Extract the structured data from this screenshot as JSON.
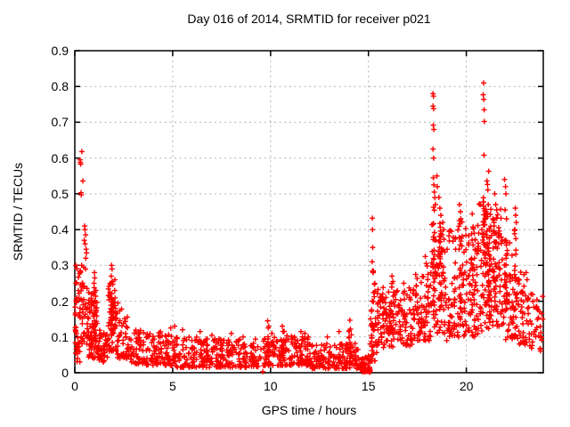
{
  "page": {
    "background": "#ffffff"
  },
  "chart_data": {
    "type": "scatter",
    "title": "Day 016 of 2014, SRMTID for receiver p021",
    "xlabel": "GPS time / hours",
    "ylabel": "SRMTID / TECUs",
    "xlim": [
      0,
      23.93
    ],
    "ylim": [
      0,
      0.9
    ],
    "xticks": [
      0,
      5,
      10,
      15,
      20
    ],
    "xtick_labels": [
      "0",
      "5",
      "10",
      "15",
      "20"
    ],
    "yticks": [
      0,
      0.1,
      0.2,
      0.3,
      0.4,
      0.5,
      0.6,
      0.7,
      0.8,
      0.9
    ],
    "ytick_labels": [
      "0",
      "0.1",
      "0.2",
      "0.3",
      "0.4",
      "0.5",
      "0.6",
      "0.7",
      "0.8",
      "0.9"
    ],
    "grid": true,
    "legend": false,
    "grid_color": "#b0b0b0",
    "border_color": "#000000",
    "marker": {
      "shape": "plus",
      "color": "#ff0000",
      "size": 7
    },
    "series": [
      {
        "style": "points",
        "outlier_points": [
          [
            0.36,
            0.618
          ],
          [
            0.27,
            0.595
          ],
          [
            0.28,
            0.588
          ],
          [
            0.3,
            0.583
          ],
          [
            0.41,
            0.536
          ],
          [
            0.32,
            0.503
          ],
          [
            0.33,
            0.497
          ],
          [
            0.5,
            0.41
          ],
          [
            0.52,
            0.4
          ],
          [
            0.55,
            0.385
          ],
          [
            0.48,
            0.37
          ],
          [
            0.53,
            0.36
          ],
          [
            0.58,
            0.345
          ],
          [
            0.6,
            0.335
          ],
          [
            0.56,
            0.32
          ],
          [
            0.35,
            0.3
          ],
          [
            0.45,
            0.295
          ],
          [
            0.55,
            0.29
          ],
          [
            0.05,
            0.25
          ],
          [
            0.1,
            0.21
          ],
          [
            0.08,
            0.2
          ],
          [
            0.4,
            0.25
          ],
          [
            0.45,
            0.24
          ],
          [
            1.0,
            0.28
          ],
          [
            1.02,
            0.265
          ],
          [
            0.98,
            0.25
          ],
          [
            1.88,
            0.3
          ],
          [
            1.9,
            0.29
          ],
          [
            1.86,
            0.27
          ],
          [
            1.92,
            0.255
          ],
          [
            2.2,
            0.195
          ],
          [
            4.9,
            0.125
          ],
          [
            5.1,
            0.13
          ],
          [
            5.5,
            0.12
          ],
          [
            6.4,
            0.115
          ],
          [
            7.0,
            0.105
          ],
          [
            8.0,
            0.11
          ],
          [
            8.6,
            0.1
          ],
          [
            9.85,
            0.145
          ],
          [
            9.88,
            0.125
          ],
          [
            9.6,
            0.003
          ],
          [
            10.07,
            0.11
          ],
          [
            10.6,
            0.13
          ],
          [
            10.65,
            0.115
          ],
          [
            11.55,
            0.115
          ],
          [
            11.75,
            0.11
          ],
          [
            12.9,
            0.1
          ],
          [
            12.94,
            0.012
          ],
          [
            13.5,
            0.115
          ],
          [
            14.05,
            0.147
          ],
          [
            14.08,
            0.122
          ],
          [
            15.02,
            0.004
          ],
          [
            15.04,
            0.009
          ],
          [
            15.05,
            0.002
          ],
          [
            15.06,
            0.011
          ],
          [
            15.07,
            0.005
          ],
          [
            15.08,
            0.008
          ],
          [
            15.09,
            0.002
          ],
          [
            15.03,
            0.012
          ],
          [
            15.2,
            0.432
          ],
          [
            15.21,
            0.4
          ],
          [
            15.22,
            0.35
          ],
          [
            15.19,
            0.31
          ],
          [
            15.24,
            0.28
          ],
          [
            16.2,
            0.27
          ],
          [
            16.25,
            0.255
          ],
          [
            16.8,
            0.25
          ],
          [
            17.9,
            0.325
          ],
          [
            17.95,
            0.305
          ],
          [
            18.0,
            0.298
          ],
          [
            18.3,
            0.78
          ],
          [
            18.32,
            0.773
          ],
          [
            18.3,
            0.745
          ],
          [
            18.33,
            0.738
          ],
          [
            18.31,
            0.692
          ],
          [
            18.34,
            0.68
          ],
          [
            18.3,
            0.625
          ],
          [
            18.33,
            0.6
          ],
          [
            18.31,
            0.545
          ],
          [
            18.34,
            0.525
          ],
          [
            18.36,
            0.505
          ],
          [
            18.42,
            0.47
          ],
          [
            18.5,
            0.55
          ],
          [
            18.52,
            0.52
          ],
          [
            18.6,
            0.49
          ],
          [
            18.65,
            0.46
          ],
          [
            18.7,
            0.44
          ],
          [
            18.8,
            0.42
          ],
          [
            18.85,
            0.4
          ],
          [
            19.65,
            0.47
          ],
          [
            19.7,
            0.45
          ],
          [
            19.72,
            0.43
          ],
          [
            20.3,
            0.444
          ],
          [
            20.36,
            0.402
          ],
          [
            20.88,
            0.81
          ],
          [
            20.86,
            0.777
          ],
          [
            20.89,
            0.764
          ],
          [
            20.91,
            0.735
          ],
          [
            20.92,
            0.702
          ],
          [
            20.9,
            0.608
          ],
          [
            20.87,
            0.489
          ],
          [
            20.88,
            0.477
          ],
          [
            21.14,
            0.563
          ],
          [
            21.05,
            0.536
          ],
          [
            21.08,
            0.526
          ],
          [
            21.1,
            0.511
          ],
          [
            21.12,
            0.47
          ],
          [
            21.0,
            0.45
          ],
          [
            21.45,
            0.5
          ],
          [
            21.5,
            0.47
          ],
          [
            21.55,
            0.455
          ],
          [
            21.95,
            0.54
          ],
          [
            22.0,
            0.52
          ],
          [
            22.02,
            0.5
          ],
          [
            21.98,
            0.455
          ],
          [
            22.05,
            0.43
          ],
          [
            22.5,
            0.46
          ],
          [
            22.52,
            0.44
          ],
          [
            22.55,
            0.42
          ],
          [
            22.48,
            0.4
          ],
          [
            23.05,
            0.28
          ],
          [
            23.1,
            0.26
          ],
          [
            23.3,
            0.22
          ],
          [
            23.4,
            0.2
          ],
          [
            23.6,
            0.185
          ],
          [
            23.75,
            0.17
          ],
          [
            23.85,
            0.165
          ],
          [
            23.9,
            0.15
          ],
          [
            23.55,
            0.12
          ],
          [
            23.8,
            0.1
          ]
        ],
        "bands": [
          [
            0.02,
            0.3,
            45,
            0.03,
            0.3,
            1.6
          ],
          [
            0.3,
            0.7,
            35,
            0.08,
            0.26,
            1.3
          ],
          [
            0.7,
            1.2,
            70,
            0.04,
            0.24,
            1.5
          ],
          [
            0.95,
            1.1,
            20,
            0.08,
            0.26,
            1.2
          ],
          [
            1.2,
            1.7,
            40,
            0.03,
            0.13,
            1.3
          ],
          [
            1.7,
            2.1,
            55,
            0.06,
            0.26,
            1.4
          ],
          [
            1.82,
            1.98,
            18,
            0.1,
            0.26,
            1.1
          ],
          [
            2.1,
            2.7,
            45,
            0.04,
            0.18,
            1.5
          ],
          [
            2.7,
            3.5,
            55,
            0.025,
            0.12,
            1.4
          ],
          [
            3.5,
            5.0,
            95,
            0.02,
            0.115,
            1.5
          ],
          [
            5.0,
            7.0,
            130,
            0.015,
            0.1,
            1.6
          ],
          [
            7.0,
            9.5,
            160,
            0.015,
            0.095,
            1.6
          ],
          [
            9.5,
            12.0,
            160,
            0.02,
            0.105,
            1.5
          ],
          [
            9.8,
            9.95,
            10,
            0.05,
            0.13,
            1.0
          ],
          [
            10.55,
            10.7,
            10,
            0.05,
            0.12,
            1.0
          ],
          [
            12.0,
            14.6,
            170,
            0.012,
            0.085,
            1.5
          ],
          [
            14.0,
            14.15,
            10,
            0.04,
            0.13,
            1.0
          ],
          [
            14.6,
            15.08,
            45,
            0.002,
            0.05,
            1.8
          ],
          [
            15.08,
            15.45,
            30,
            0.03,
            0.25,
            1.2
          ],
          [
            15.15,
            15.3,
            15,
            0.05,
            0.3,
            1.2
          ],
          [
            15.45,
            17.3,
            150,
            0.07,
            0.24,
            1.2
          ],
          [
            16.15,
            16.3,
            12,
            0.1,
            0.26,
            1.0
          ],
          [
            17.3,
            18.2,
            80,
            0.09,
            0.28,
            1.2
          ],
          [
            18.2,
            19.0,
            70,
            0.11,
            0.42,
            1.3
          ],
          [
            18.28,
            18.4,
            25,
            0.15,
            0.5,
            1.0
          ],
          [
            18.55,
            18.75,
            20,
            0.2,
            0.45,
            1.0
          ],
          [
            19.0,
            19.95,
            80,
            0.09,
            0.4,
            1.3
          ],
          [
            19.6,
            19.8,
            20,
            0.15,
            0.43,
            1.0
          ],
          [
            19.95,
            20.6,
            60,
            0.1,
            0.42,
            1.3
          ],
          [
            20.25,
            20.45,
            20,
            0.12,
            0.4,
            1.0
          ],
          [
            20.6,
            21.3,
            75,
            0.11,
            0.48,
            1.3
          ],
          [
            20.8,
            21.0,
            25,
            0.15,
            0.47,
            1.0
          ],
          [
            21.05,
            21.2,
            20,
            0.15,
            0.45,
            1.0
          ],
          [
            21.3,
            21.8,
            55,
            0.13,
            0.46,
            1.3
          ],
          [
            21.4,
            21.6,
            18,
            0.18,
            0.44,
            1.0
          ],
          [
            21.8,
            22.4,
            55,
            0.09,
            0.42,
            1.3
          ],
          [
            21.95,
            22.1,
            18,
            0.15,
            0.42,
            1.0
          ],
          [
            22.4,
            23.0,
            45,
            0.08,
            0.3,
            1.3
          ],
          [
            22.45,
            22.6,
            18,
            0.12,
            0.4,
            1.0
          ],
          [
            23.0,
            23.93,
            45,
            0.06,
            0.22,
            1.2
          ]
        ]
      }
    ]
  }
}
